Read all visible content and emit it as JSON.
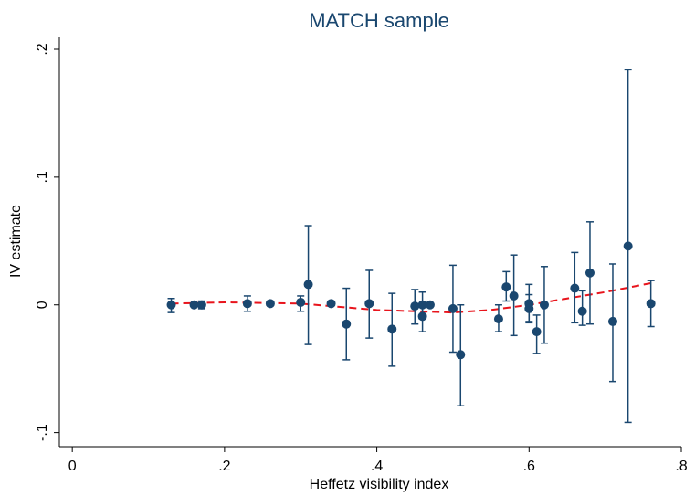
{
  "chart_data": {
    "type": "scatter",
    "title": "MATCH sample",
    "x_label": "Heffetz visibility index",
    "y_label": "IV estimate",
    "xlim": [
      -0.017,
      0.8
    ],
    "ylim": [
      -0.111,
      0.21
    ],
    "xticks": [
      0,
      {
        "value": 0.2,
        "label": ".2"
      },
      {
        "value": 0.4,
        "label": ".4"
      },
      {
        "value": 0.6,
        "label": ".6"
      },
      {
        "value": 0.8,
        "label": ".8"
      }
    ],
    "yticks": [
      {
        "value": -0.1,
        "label": "-.1"
      },
      0,
      {
        "value": 0.1,
        "label": ".1"
      },
      {
        "value": 0.2,
        "label": ".2"
      }
    ],
    "grid": false,
    "series": [
      {
        "color": "#1a476f",
        "x": [
          0.13,
          0.16,
          0.17,
          0.23,
          0.26,
          0.3,
          0.31,
          0.34,
          0.36,
          0.39,
          0.42,
          0.45,
          0.46,
          0.46,
          0.47,
          0.5,
          0.51,
          0.56,
          0.57,
          0.58,
          0.6,
          0.6,
          0.61,
          0.62,
          0.66,
          0.67,
          0.68,
          0.71,
          0.73,
          0.76
        ],
        "values": [
          0,
          0,
          0,
          0.001,
          0.001,
          0.002,
          0.016,
          0.001,
          -0.015,
          0.001,
          -0.019,
          -0.001,
          0,
          -0.009,
          0,
          -0.003,
          -0.039,
          -0.011,
          0.014,
          0.007,
          0.001,
          -0.003,
          -0.021,
          0,
          0.013,
          -0.005,
          0.025,
          -0.013,
          0.046,
          0.001
        ],
        "ci_high": [
          0.005,
          0.001,
          0.003,
          0.007,
          0.002,
          0.007,
          0.062,
          0.002,
          0.013,
          0.027,
          0.009,
          0.012,
          0.01,
          0,
          0.001,
          0.031,
          0,
          0,
          0.026,
          0.039,
          0.016,
          0.008,
          -0.008,
          0.03,
          0.041,
          0.011,
          0.065,
          0.032,
          0.184,
          0.019
        ],
        "ci_low": [
          -0.006,
          -0.001,
          -0.003,
          -0.005,
          0,
          -0.005,
          -0.031,
          0,
          -0.043,
          -0.026,
          -0.048,
          -0.015,
          -0.011,
          -0.021,
          -0.001,
          -0.037,
          -0.079,
          -0.021,
          0.003,
          -0.024,
          -0.013,
          -0.014,
          -0.038,
          -0.03,
          -0.014,
          -0.016,
          -0.015,
          -0.06,
          -0.092,
          -0.017
        ]
      }
    ],
    "fit": {
      "color": "#e8141c",
      "dashed": true,
      "x": [
        0.13,
        0.2,
        0.3,
        0.4,
        0.5,
        0.55,
        0.6,
        0.65,
        0.7,
        0.76
      ],
      "values": [
        0.001,
        0.002,
        0.001,
        -0.004,
        -0.006,
        -0.004,
        0,
        0.005,
        0.01,
        0.017
      ]
    }
  }
}
